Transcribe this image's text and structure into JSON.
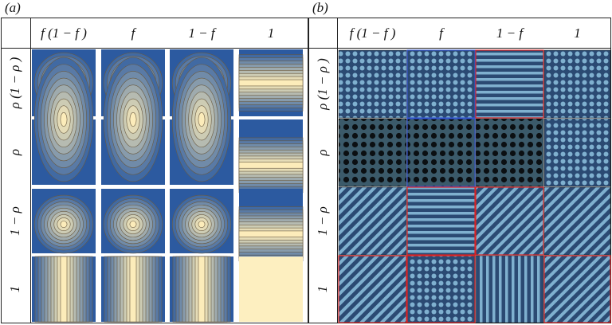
{
  "panels": [
    {
      "label": "(a)",
      "columns": [
        "f (1 − f )",
        "f",
        "1 − f",
        "1"
      ],
      "rows": [
        "ρ (1 − ρ )",
        "ρ",
        "1 − ρ",
        "1"
      ]
    },
    {
      "label": "(b)",
      "columns": [
        "f (1 − f )",
        "f",
        "1 − f",
        "1"
      ],
      "rows": [
        "ρ (1 − ρ )",
        "ρ",
        "1 − ρ",
        "1"
      ]
    }
  ]
}
